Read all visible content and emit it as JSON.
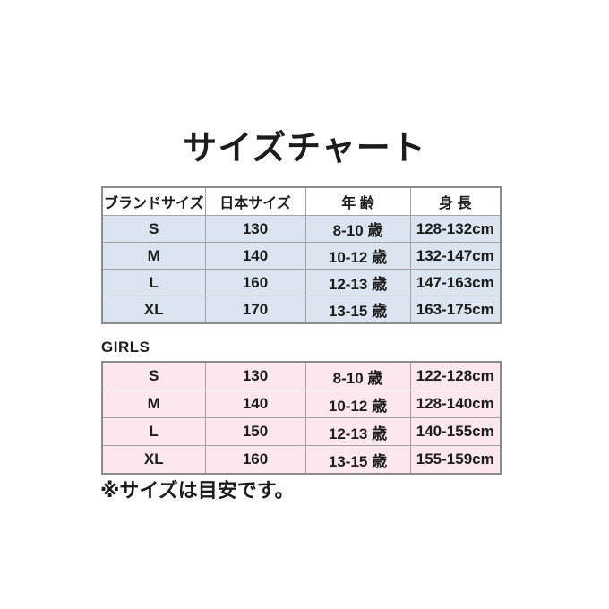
{
  "title": "サイズチャート",
  "girls_section_label": "GIRLS",
  "note": "※サイズは目安です。",
  "colors": {
    "main_table_row_bg": "#dbe5f1",
    "girls_table_row_bg": "#fce7ee",
    "header_row_bg": "#ffffff",
    "grid_border": "#a3a3a3",
    "outer_border": "#8c8c8c",
    "text": "#1c1c1c"
  },
  "chart_data": [
    {
      "type": "table",
      "title": "サイズチャート",
      "columns": [
        "ブランドサイズ",
        "日本サイズ",
        "年 齢",
        "身 長"
      ],
      "rows": [
        [
          "S",
          "130",
          "8-10 歳",
          "128-132cm"
        ],
        [
          "M",
          "140",
          "10-12 歳",
          "132-147cm"
        ],
        [
          "L",
          "160",
          "12-13 歳",
          "147-163cm"
        ],
        [
          "XL",
          "170",
          "13-15 歳",
          "163-175cm"
        ]
      ],
      "layout_hints": {
        "header_row": true,
        "row_fill": "light-blue",
        "grid": true
      }
    },
    {
      "type": "table",
      "title": "GIRLS",
      "columns": [],
      "rows": [
        [
          "S",
          "130",
          "8-10 歳",
          "122-128cm"
        ],
        [
          "M",
          "140",
          "10-12 歳",
          "128-140cm"
        ],
        [
          "L",
          "150",
          "12-13 歳",
          "140-155cm"
        ],
        [
          "XL",
          "160",
          "13-15 歳",
          "155-159cm"
        ]
      ],
      "layout_hints": {
        "header_row": false,
        "row_fill": "light-pink",
        "grid": true
      }
    }
  ]
}
